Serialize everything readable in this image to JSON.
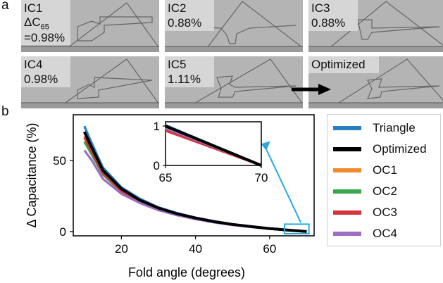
{
  "panel_a": {
    "letter": "a",
    "tiles": [
      {
        "lines": [
          "IC1",
          "ΔC65",
          "=0.98%"
        ],
        "delta_main": "ΔC",
        "delta_sub": "65",
        "eq": "=0.98%"
      },
      {
        "lines": [
          "IC2",
          "0.88%"
        ]
      },
      {
        "lines": [
          "IC3",
          "0.88%"
        ]
      },
      {
        "lines": [
          "IC4",
          "0.98%"
        ]
      },
      {
        "lines": [
          "IC5",
          "1.11%"
        ]
      },
      {
        "lines": [
          "Optimized"
        ]
      }
    ]
  },
  "panel_b": {
    "letter": "b"
  },
  "chart_data": {
    "type": "line",
    "xlabel": "Fold angle (degrees)",
    "ylabel": "Δ Capacitance (%)",
    "xlim": [
      7,
      72
    ],
    "ylim": [
      -3,
      82
    ],
    "xticks": [
      20,
      40,
      60
    ],
    "yticks": [
      0,
      50
    ],
    "x": [
      10,
      12,
      15,
      20,
      25,
      30,
      35,
      40,
      45,
      50,
      55,
      60,
      65,
      70
    ],
    "series": [
      {
        "name": "Triangle",
        "color": "#2a7fc0",
        "values": [
          74,
          62,
          45,
          31,
          23,
          17,
          13,
          9.8,
          7.2,
          5.2,
          3.6,
          2.1,
          1.0,
          0
        ]
      },
      {
        "name": "Optimized",
        "color": "#000000",
        "values": [
          70,
          59,
          43,
          30,
          22,
          16.5,
          12.5,
          9.5,
          7.0,
          5.0,
          3.5,
          2.1,
          1.0,
          0
        ]
      },
      {
        "name": "OC1",
        "color": "#f08a2a",
        "values": [
          67,
          57,
          42,
          29,
          21.5,
          16,
          12.2,
          9.2,
          6.8,
          4.9,
          3.4,
          2.0,
          0.95,
          0
        ]
      },
      {
        "name": "OC2",
        "color": "#3aa64a",
        "values": [
          63,
          54,
          40,
          28,
          21,
          15.6,
          11.9,
          9.0,
          6.6,
          4.8,
          3.3,
          1.95,
          0.92,
          0
        ]
      },
      {
        "name": "OC3",
        "color": "#d4353a",
        "values": [
          66,
          56,
          41,
          28.5,
          21.2,
          15.8,
          12.0,
          9.1,
          6.7,
          4.8,
          3.3,
          1.9,
          0.88,
          0
        ]
      },
      {
        "name": "OC4",
        "color": "#9d6ec2",
        "values": [
          57,
          50,
          37,
          26.5,
          20,
          15,
          11.5,
          8.7,
          6.4,
          4.6,
          3.2,
          1.9,
          0.95,
          0
        ]
      }
    ],
    "inset": {
      "xlim": [
        65,
        70
      ],
      "ylim": [
        0,
        1
      ],
      "xticks": [
        65,
        70
      ],
      "yticks": [
        0,
        1
      ],
      "x": [
        65,
        70
      ],
      "series_start_values": [
        1.02,
        1.0,
        0.95,
        0.92,
        0.88,
        0.95
      ],
      "series_end_values": [
        0,
        0,
        0,
        0,
        0,
        0
      ]
    },
    "legend": {
      "position": "right",
      "entries": [
        "Triangle",
        "Optimized",
        "OC1",
        "OC2",
        "OC3",
        "OC4"
      ]
    }
  }
}
